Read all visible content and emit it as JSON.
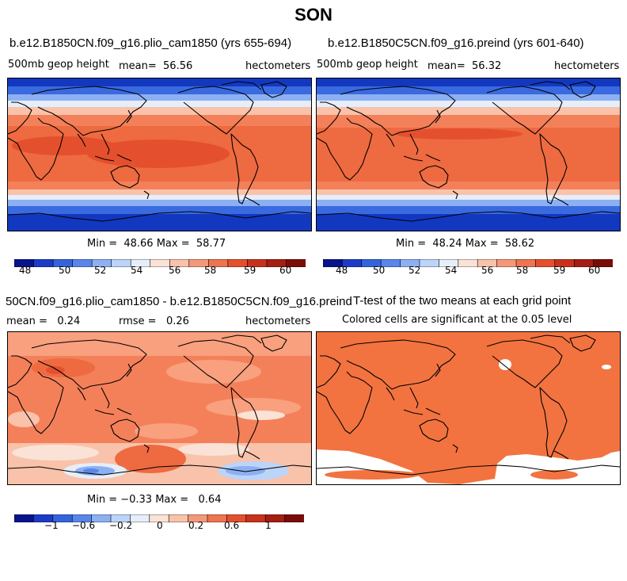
{
  "figure_title": "SON",
  "panels": {
    "top_left": {
      "title": "b.e12.B1850CN.f09_g16.plio_cam1850 (yrs 655-694)",
      "variable": "500mb geop height",
      "mean_label": "mean=",
      "mean": "56.56",
      "units": "hectometers",
      "min_label": "Min =",
      "min": "48.66",
      "max_label": "Max =",
      "max": "58.77"
    },
    "top_right": {
      "title": "b.e12.B1850C5CN.f09_g16.preind (yrs 601-640)",
      "variable": "500mb geop height",
      "mean_label": "mean=",
      "mean": "56.32",
      "units": "hectometers",
      "min_label": "Min =",
      "min": "48.24",
      "max_label": "Max =",
      "max": "58.62"
    },
    "bottom_left": {
      "title": "50CN.f09_g16.plio_cam1850 - b.e12.B1850C5CN.f09_g16.preind",
      "mean_label": "mean =",
      "mean": "0.24",
      "rmse_label": "rmse =",
      "rmse": "0.26",
      "units": "hectometers",
      "min_label": "Min =",
      "min": "−0.33",
      "max_label": "Max =",
      "max": "0.64"
    },
    "bottom_right": {
      "title": "T-test of the two means at each grid point",
      "subtitle": "Colored cells are significant at the 0.05 level"
    }
  },
  "colorbar_top": {
    "colors": [
      "#08148c",
      "#1c3cc8",
      "#3464dc",
      "#5a86ea",
      "#8cb0f2",
      "#bcd4f8",
      "#e6eefa",
      "#fbe2d6",
      "#f9c2aa",
      "#f4987a",
      "#ee7452",
      "#e4502e",
      "#c8321c",
      "#a41e12",
      "#7a0c08"
    ],
    "tick_labels": [
      "48",
      "50",
      "52",
      "54",
      "56",
      "58",
      "59",
      "60"
    ]
  },
  "colorbar_diff": {
    "colors": [
      "#08148c",
      "#1c3cc8",
      "#3464dc",
      "#5a86ea",
      "#8cb0f2",
      "#bcd4f8",
      "#e6eefa",
      "#fbe2d6",
      "#f9c2aa",
      "#f4987a",
      "#ee7452",
      "#e4502e",
      "#c8321c",
      "#a41e12",
      "#7a0c08"
    ],
    "tick_labels": [
      "−1",
      "−0.6",
      "−0.2",
      "0",
      "0.2",
      "0.6",
      "1"
    ]
  },
  "map_colors": {
    "deep_blue": "#1238c0",
    "blue": "#3a6ae0",
    "light_blue": "#8cb0f2",
    "pale": "#e6eefa",
    "light_orange": "#f9c2aa",
    "orange": "#f4805a",
    "red_orange": "#ee6a40",
    "red": "#e4502e",
    "signif": "#f27340",
    "coast": "#000000"
  }
}
